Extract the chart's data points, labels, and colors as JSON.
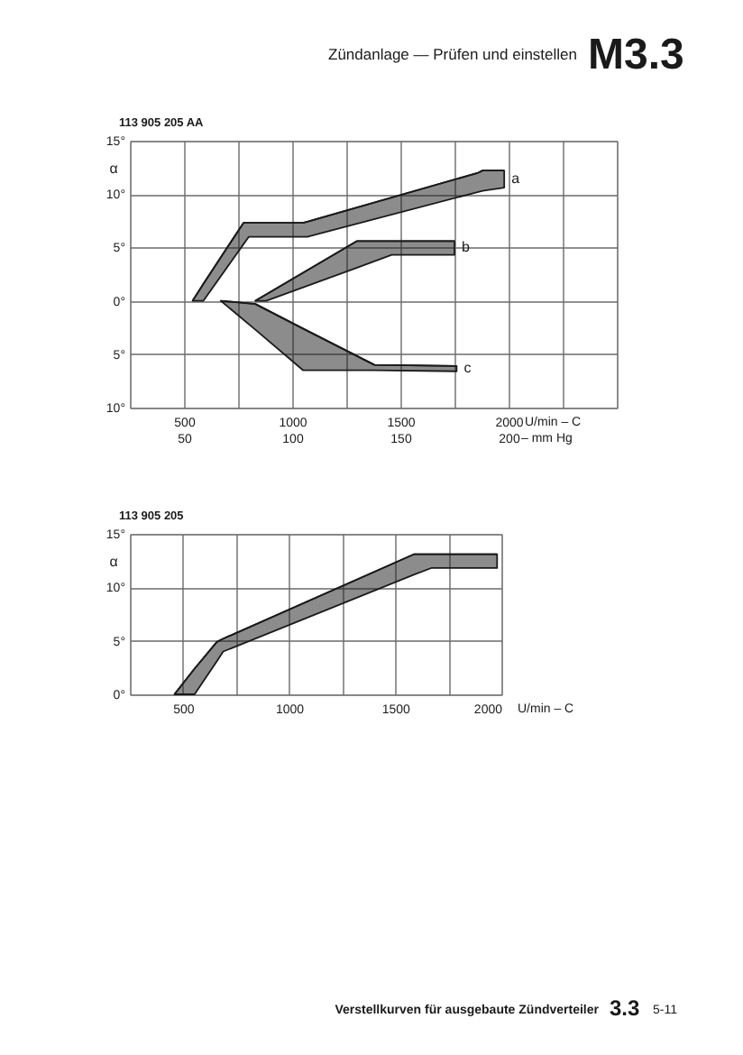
{
  "chart_data": [
    {
      "type": "line",
      "title": "113 905 205 AA",
      "ylabel": "α",
      "xlabel": "U/min – C",
      "x2label": "– mm Hg",
      "annotations": [
        "Zündanlage — Prüfen und einstellen",
        "M3.3"
      ],
      "xlim": [
        250,
        2500
      ],
      "xticks": [
        {
          "value": 250,
          "label": null
        },
        500,
        {
          "value": 750,
          "label": null
        },
        1000,
        {
          "value": 1250,
          "label": null
        },
        1500,
        {
          "value": 1750,
          "label": null
        },
        2000,
        {
          "value": 2250,
          "label": null
        },
        {
          "value": 2500,
          "label": null
        }
      ],
      "x2lim": [
        25,
        250
      ],
      "x2ticks": [
        50,
        100,
        150,
        200
      ],
      "ylim": [
        -10,
        15
      ],
      "yticks": [
        {
          "value": -10,
          "label": "10°"
        },
        {
          "value": -5,
          "label": "5°"
        },
        {
          "value": 0,
          "label": "0°"
        },
        {
          "value": 5,
          "label": "5°"
        },
        {
          "value": 10,
          "label": "10°"
        },
        {
          "value": 15,
          "label": "15°"
        }
      ],
      "grid": true,
      "series": [
        {
          "name": "a",
          "color": "#1a1a1a",
          "x": [
            540,
            590,
            775,
            800,
            1050,
            1070,
            1860,
            1880,
            1980
          ],
          "values": [
            0,
            1.6,
            7.3,
            7.3,
            7.3,
            7.4,
            12.0,
            12.2,
            12.2
          ],
          "upper": [
            0,
            1.6,
            7.3,
            7.3,
            7.3,
            7.4,
            12.0,
            12.2,
            12.2
          ],
          "lower": [
            0,
            0,
            5.3,
            6.0,
            6.0,
            6.0,
            10.2,
            10.3,
            10.6
          ]
        },
        {
          "name": "b",
          "color": "#1a1a1a",
          "x": [
            830,
            880,
            1300,
            1460,
            1750
          ],
          "values": [
            0,
            0.6,
            5.6,
            5.6,
            5.6
          ],
          "upper": [
            0,
            0.6,
            5.6,
            5.6,
            5.6
          ],
          "lower": [
            0,
            0,
            3.1,
            4.3,
            4.3
          ]
        },
        {
          "name": "c",
          "color": "#1a1a1a",
          "x": [
            670,
            830,
            1050,
            1380,
            1760
          ],
          "values": [
            0,
            -0.3,
            -2.6,
            -6.0,
            -6.1
          ],
          "upper": [
            0,
            -0.3,
            -2.6,
            -6.0,
            -6.1
          ],
          "lower": [
            0,
            -2.7,
            -6.5,
            -6.5,
            -6.6
          ]
        }
      ]
    },
    {
      "type": "line",
      "title": "113 905 205",
      "ylabel": "α",
      "xlabel": "U/min – C",
      "annotations": [
        "Verstellkurven für ausgebaute Zündverteiler",
        "3.3",
        "5-11"
      ],
      "xlim": [
        250,
        2000
      ],
      "xticks": [
        {
          "value": 250,
          "label": null
        },
        500,
        {
          "value": 750,
          "label": null
        },
        1000,
        {
          "value": 1250,
          "label": null
        },
        1500,
        {
          "value": 1750,
          "label": null
        },
        2000
      ],
      "ylim": [
        0,
        15
      ],
      "yticks": [
        {
          "value": 0,
          "label": "0°"
        },
        {
          "value": 5,
          "label": "5°"
        },
        {
          "value": 10,
          "label": "10°"
        },
        {
          "value": 15,
          "label": "15°"
        }
      ],
      "grid": true,
      "series": [
        {
          "color": "#1a1a1a",
          "x": [
            460,
            555,
            660,
            690,
            1590,
            1670,
            1980
          ],
          "values": [
            0,
            2.4,
            4.9,
            5.2,
            13.1,
            13.1,
            13.1
          ],
          "upper": [
            0,
            2.4,
            4.9,
            5.2,
            13.1,
            13.1,
            13.1
          ],
          "lower": [
            0,
            0,
            3.1,
            4.0,
            11.2,
            11.8,
            11.8
          ]
        }
      ]
    }
  ]
}
